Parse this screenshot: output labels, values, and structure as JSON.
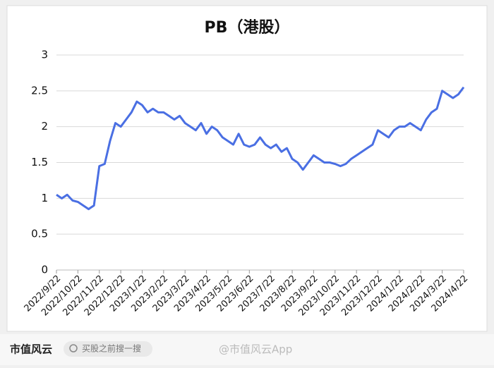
{
  "chart_data": {
    "type": "line",
    "title": "PB（港股）",
    "categories": [
      "2022/9/22",
      null,
      null,
      null,
      "2022/10/22",
      null,
      null,
      null,
      "2022/11/22",
      null,
      null,
      null,
      "2022/12/22",
      null,
      null,
      null,
      "2023/1/22",
      null,
      null,
      null,
      "2023/2/22",
      null,
      null,
      null,
      "2023/3/22",
      null,
      null,
      null,
      "2023/4/22",
      null,
      null,
      null,
      "2023/5/22",
      null,
      null,
      null,
      "2023/6/22",
      null,
      null,
      null,
      "2023/7/22",
      null,
      null,
      null,
      "2023/8/22",
      null,
      null,
      null,
      "2023/9/22",
      null,
      null,
      null,
      "2023/10/22",
      null,
      null,
      null,
      "2023/11/22",
      null,
      null,
      null,
      "2023/12/22",
      null,
      null,
      null,
      "2024/1/22",
      null,
      null,
      null,
      "2024/2/22",
      null,
      null,
      null,
      "2024/3/22",
      null,
      null,
      null,
      "2024/4/22"
    ],
    "series": [
      {
        "name": "PB",
        "color": "#4a6fe3",
        "values": [
          1.05,
          1.0,
          1.05,
          0.97,
          0.95,
          0.9,
          0.85,
          0.9,
          1.45,
          1.48,
          1.8,
          2.05,
          2.0,
          2.1,
          2.2,
          2.35,
          2.3,
          2.2,
          2.25,
          2.2,
          2.2,
          2.15,
          2.1,
          2.15,
          2.05,
          2.0,
          1.95,
          2.05,
          1.9,
          2.0,
          1.95,
          1.85,
          1.8,
          1.75,
          1.9,
          1.75,
          1.72,
          1.75,
          1.85,
          1.75,
          1.7,
          1.75,
          1.65,
          1.7,
          1.55,
          1.5,
          1.4,
          1.5,
          1.6,
          1.55,
          1.5,
          1.5,
          1.48,
          1.45,
          1.48,
          1.55,
          1.6,
          1.65,
          1.7,
          1.75,
          1.95,
          1.9,
          1.85,
          1.95,
          2.0,
          2.0,
          2.05,
          2.0,
          1.95,
          2.1,
          2.2,
          2.25,
          2.5,
          2.45,
          2.4,
          2.45,
          2.55
        ]
      }
    ],
    "ylim": [
      0,
      3
    ],
    "yticks": [
      0,
      0.5,
      1,
      1.5,
      2,
      2.5,
      3
    ],
    "grid": true
  },
  "footer": {
    "logo": "市值风云",
    "search": "买股之前搜一搜",
    "account": "@市值风云App"
  }
}
